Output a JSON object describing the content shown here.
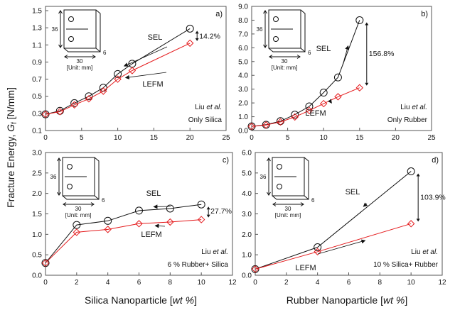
{
  "figure": {
    "ylabel_main": "Fracture Energy, ",
    "ylabel_sym": "G",
    "ylabel_sub": "f",
    "ylabel_unit": " [N/mm]",
    "xlabel_left_pre": "Silica Nanoparticle [",
    "xlabel_left_it": "wt %",
    "xlabel_left_post": "]",
    "xlabel_right_pre": "Rubber Nanoparticle [",
    "xlabel_right_it": "wt %",
    "xlabel_right_post": "]"
  },
  "colors": {
    "sel": "#111111",
    "lefm": "#e41a1c",
    "axis": "#555555"
  },
  "specimen": {
    "width_label": "30",
    "height_label": "36",
    "thick_label": "6",
    "unit_label": "[Unit: mm]"
  },
  "chart_data": [
    {
      "type": "line",
      "panel_label": "a)",
      "xlim": [
        0,
        25
      ],
      "ylim": [
        0.1,
        1.55
      ],
      "xticks": [
        0,
        5,
        10,
        15,
        20,
        25
      ],
      "yticks": [
        0.1,
        0.3,
        0.5,
        0.7,
        0.9,
        1.1,
        1.3,
        1.5
      ],
      "ytick_labels": [
        "0.1",
        "0.3",
        "0.5",
        "0.7",
        "0.9",
        "1.1",
        "1.3",
        "1.5"
      ],
      "series": [
        {
          "name": "SEL",
          "x": [
            0,
            2,
            4,
            6,
            8,
            10,
            12,
            20
          ],
          "y": [
            0.29,
            0.33,
            0.42,
            0.5,
            0.6,
            0.76,
            0.88,
            1.29
          ]
        },
        {
          "name": "LEFM",
          "x": [
            0,
            2,
            4,
            6,
            8,
            10,
            12,
            20
          ],
          "y": [
            0.29,
            0.32,
            0.4,
            0.47,
            0.56,
            0.7,
            0.8,
            1.12
          ]
        }
      ],
      "improvement_label": "14.2%",
      "note_author": "Liu ",
      "note_etal": "et al.",
      "note_line2": "Only Silica"
    },
    {
      "type": "line",
      "panel_label": "b)",
      "xlim": [
        0,
        25
      ],
      "ylim": [
        0,
        9
      ],
      "xticks": [
        0,
        5,
        10,
        15,
        20,
        25
      ],
      "yticks": [
        0,
        1,
        2,
        3,
        4,
        5,
        6,
        7,
        8,
        9
      ],
      "ytick_labels": [
        "0.0",
        "1.0",
        "2.0",
        "3.0",
        "4.0",
        "5.0",
        "6.0",
        "7.0",
        "8.0",
        "9.0"
      ],
      "series": [
        {
          "name": "SEL",
          "x": [
            0,
            2,
            4,
            6,
            8,
            10,
            12,
            15
          ],
          "y": [
            0.3,
            0.42,
            0.68,
            1.15,
            1.75,
            2.75,
            3.85,
            8.0
          ]
        },
        {
          "name": "LEFM",
          "x": [
            0,
            2,
            4,
            6,
            8,
            10,
            12,
            15
          ],
          "y": [
            0.3,
            0.4,
            0.62,
            0.98,
            1.45,
            1.95,
            2.45,
            3.1
          ]
        }
      ],
      "improvement_label": "156.8%",
      "note_author": "Liu ",
      "note_etal": "et al.",
      "note_line2": "Only Rubber"
    },
    {
      "type": "line",
      "panel_label": "c)",
      "xlim": [
        0,
        12
      ],
      "ylim": [
        0,
        3
      ],
      "xticks": [
        0,
        2,
        4,
        6,
        8,
        10,
        12
      ],
      "yticks": [
        0,
        0.5,
        1,
        1.5,
        2,
        2.5,
        3
      ],
      "ytick_labels": [
        "0.0",
        "0.5",
        "1.0",
        "1.5",
        "2.0",
        "2.5",
        "3.0"
      ],
      "series": [
        {
          "name": "SEL",
          "x": [
            0,
            2,
            4,
            6,
            8,
            10
          ],
          "y": [
            0.3,
            1.23,
            1.33,
            1.58,
            1.63,
            1.73
          ]
        },
        {
          "name": "LEFM",
          "x": [
            0,
            2,
            4,
            6,
            8,
            10
          ],
          "y": [
            0.3,
            1.05,
            1.12,
            1.26,
            1.3,
            1.36
          ]
        }
      ],
      "improvement_label": "27.7%",
      "note_author": "Liu ",
      "note_etal": "et al.",
      "note_line2": "6 % Rubber+ Silica"
    },
    {
      "type": "line",
      "panel_label": "d)",
      "xlim": [
        0,
        12
      ],
      "ylim": [
        0,
        6
      ],
      "xticks": [
        0,
        2,
        4,
        6,
        8,
        10,
        12
      ],
      "yticks": [
        0,
        1,
        2,
        3,
        4,
        5,
        6
      ],
      "ytick_labels": [
        "0.0",
        "1.0",
        "2.0",
        "3.0",
        "4.0",
        "5.0",
        "6.0"
      ],
      "series": [
        {
          "name": "SEL",
          "x": [
            0,
            4,
            10
          ],
          "y": [
            0.3,
            1.37,
            5.08
          ]
        },
        {
          "name": "LEFM",
          "x": [
            0,
            4,
            10
          ],
          "y": [
            0.3,
            1.15,
            2.52
          ]
        }
      ],
      "improvement_label": "103.9%",
      "note_author": "Liu ",
      "note_etal": "et al.",
      "note_line2": "10 % Silica+ Rubber"
    }
  ]
}
